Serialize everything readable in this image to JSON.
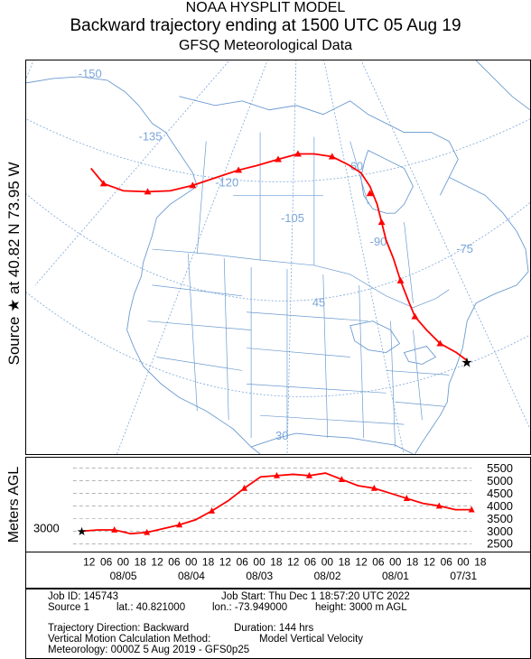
{
  "header": {
    "line1": "NOAA HYSPLIT MODEL",
    "line2": "Backward trajectory ending at 1500 UTC 05 Aug 19",
    "line3": "GFSQ Meteorological Data"
  },
  "side_label": "Source ★ at 40.82 N 73.95 W",
  "map": {
    "lon_labels": [
      "-150",
      "-135",
      "-120",
      "-105",
      "-90",
      "-75"
    ],
    "lat_labels": [
      "60",
      "45",
      "30"
    ],
    "colors": {
      "land": "#6b9bd0",
      "grid": "#7aa6d8",
      "trajectory": "#ff0000"
    }
  },
  "agl": {
    "ylabel": "Meters AGL",
    "ticks": [
      "5500",
      "5000",
      "4500",
      "4000",
      "3500",
      "3000",
      "2500"
    ],
    "start_label": "3000"
  },
  "time_axis": {
    "hours": [
      "12",
      "06",
      "00",
      "18",
      "12",
      "06",
      "00",
      "18",
      "12",
      "06",
      "00",
      "18",
      "12",
      "06",
      "00",
      "18",
      "12",
      "06",
      "00",
      "18",
      "12",
      "06",
      "00",
      "18"
    ],
    "dates": [
      "08/05",
      "08/04",
      "08/03",
      "08/02",
      "08/01",
      "07/31"
    ]
  },
  "info": {
    "job_id": "Job ID: 145743",
    "job_start": "Job Start: Thu Dec  1 18:57:20 UTC 2022",
    "source": "Source 1",
    "lat": "lat.: 40.821000",
    "lon": "lon.: -73.949000",
    "height": "height: 3000 m AGL",
    "direction": "Trajectory Direction: Backward",
    "duration": "Duration: 144 hrs",
    "vmethod_label": "Vertical Motion Calculation Method:",
    "vmethod": "Model Vertical Velocity",
    "meteorology": "Meteorology: 0000Z  5 Aug 2019 - GFS0p25"
  },
  "chart_data": {
    "type": "line",
    "title": "Backward trajectory ending at 1500 UTC 05 Aug 19",
    "ylabel": "Meters AGL",
    "x": [
      0,
      6,
      12,
      18,
      24,
      30,
      36,
      42,
      48,
      54,
      60,
      66,
      72,
      78,
      84,
      90,
      96,
      102,
      108,
      114,
      120,
      126,
      132,
      138,
      144
    ],
    "series": [
      {
        "values": [
          3000,
          3050,
          3050,
          2900,
          2950,
          3100,
          3250,
          3450,
          3800,
          4200,
          4700,
          5150,
          5200,
          5250,
          5200,
          5300,
          5050,
          4800,
          4700,
          4500,
          4300,
          4100,
          4000,
          3850,
          3850
        ]
      }
    ],
    "ylim": [
      2400,
      5700
    ]
  }
}
